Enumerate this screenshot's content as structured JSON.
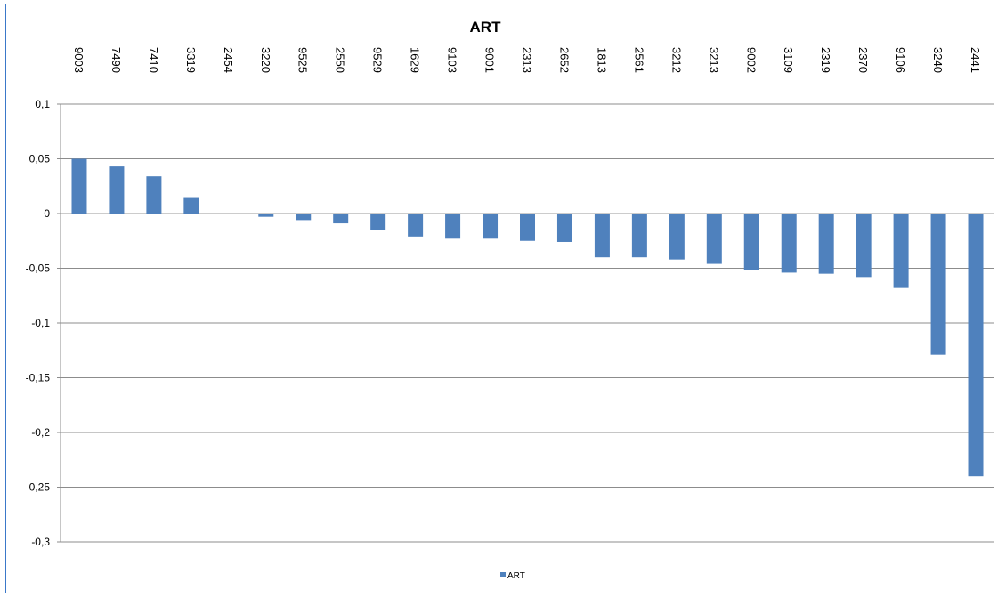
{
  "chart_data": {
    "type": "bar",
    "title": "ART",
    "xlabel": "",
    "ylabel": "",
    "categories": [
      "9003",
      "7490",
      "7410",
      "3319",
      "2454",
      "3220",
      "9525",
      "2550",
      "9529",
      "1629",
      "9103",
      "9001",
      "2313",
      "2652",
      "1813",
      "2561",
      "3212",
      "3213",
      "9002",
      "3109",
      "2319",
      "2370",
      "9106",
      "3240",
      "2441"
    ],
    "series": [
      {
        "name": "ART",
        "color": "#4f81bd",
        "values": [
          0.05,
          0.043,
          0.034,
          0.015,
          0.0,
          -0.003,
          -0.006,
          -0.009,
          -0.015,
          -0.021,
          -0.023,
          -0.023,
          -0.025,
          -0.026,
          -0.04,
          -0.04,
          -0.042,
          -0.046,
          -0.052,
          -0.054,
          -0.055,
          -0.058,
          -0.068,
          -0.129,
          -0.24
        ]
      }
    ],
    "ylim": [
      -0.3,
      0.1
    ],
    "yticks": [
      0.1,
      0.05,
      0,
      -0.05,
      -0.1,
      -0.15,
      -0.2,
      -0.25,
      -0.3
    ],
    "ytick_labels": [
      "0,1",
      "0,05",
      "0",
      "-0,05",
      "-0,1",
      "-0,15",
      "-0,2",
      "-0,25",
      "-0,3"
    ],
    "category_label_position": "top",
    "category_label_rotation": "vertical",
    "grid": true,
    "legend": {
      "position": "bottom",
      "entries": [
        "ART"
      ]
    }
  }
}
